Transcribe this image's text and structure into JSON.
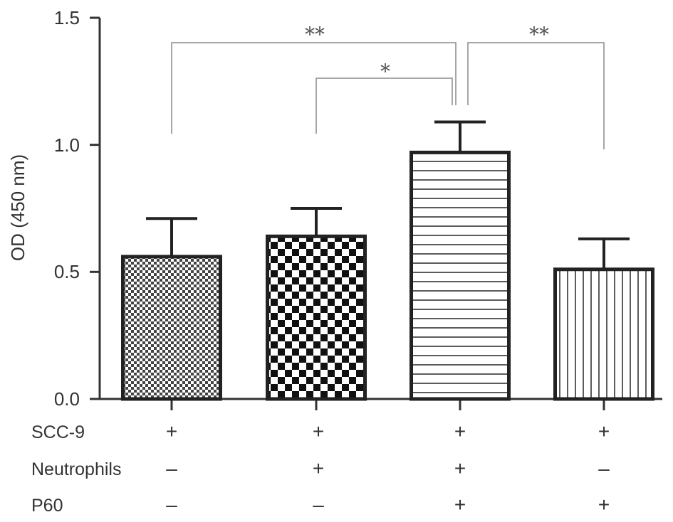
{
  "chart_data": {
    "type": "bar",
    "ylabel": "OD (450 nm)",
    "ylim": [
      0,
      1.5
    ],
    "yticks": [
      "0.0",
      "0.5",
      "1.0",
      "1.5"
    ],
    "bars": [
      {
        "value": 0.56,
        "error": 0.15,
        "pattern": "fine-checker"
      },
      {
        "value": 0.64,
        "error": 0.11,
        "pattern": "coarse-checker"
      },
      {
        "value": 0.97,
        "error": 0.12,
        "pattern": "horizontal-lines"
      },
      {
        "value": 0.51,
        "error": 0.12,
        "pattern": "vertical-lines"
      }
    ],
    "conditions": [
      {
        "label": "SCC-9",
        "values": [
          "+",
          "+",
          "+",
          "+"
        ]
      },
      {
        "label": "Neutrophils",
        "values": [
          "–",
          "+",
          "+",
          "–"
        ]
      },
      {
        "label": "P60",
        "values": [
          "–",
          "–",
          "+",
          "+"
        ]
      }
    ],
    "significance": [
      {
        "from": 0,
        "to": 2,
        "label": "**"
      },
      {
        "from": 1,
        "to": 2,
        "label": "*"
      },
      {
        "from": 2,
        "to": 3,
        "label": "**"
      }
    ]
  },
  "colors": {
    "bar_stroke": "#222222",
    "axis": "#333333",
    "bracket": "#888888"
  }
}
